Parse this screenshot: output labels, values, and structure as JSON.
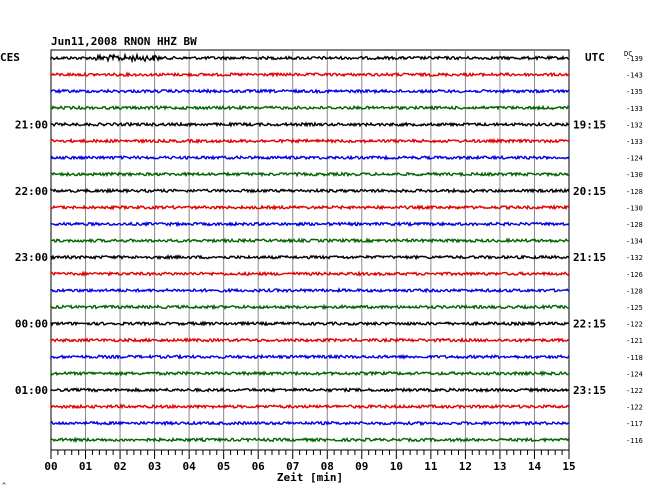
{
  "chart_data": {
    "type": "line",
    "title": "Jun11,2008   RNON HHZ BW",
    "xlabel": "Zeit [min]",
    "x_ticks": [
      "00",
      "01",
      "02",
      "03",
      "04",
      "05",
      "06",
      "07",
      "08",
      "09",
      "10",
      "11",
      "12",
      "13",
      "14",
      "15"
    ],
    "xlim": [
      0,
      15
    ],
    "left_axis_label": "CES",
    "right_axis_label": "UTC",
    "dc_label": "DC",
    "left_time_labels": [
      {
        "trace": 4,
        "text": "21:00"
      },
      {
        "trace": 8,
        "text": "22:00"
      },
      {
        "trace": 12,
        "text": "23:00"
      },
      {
        "trace": 16,
        "text": "00:00"
      },
      {
        "trace": 20,
        "text": "01:00"
      }
    ],
    "right_time_labels": [
      {
        "trace": 4,
        "text": "19:15"
      },
      {
        "trace": 8,
        "text": "20:15"
      },
      {
        "trace": 12,
        "text": "21:15"
      },
      {
        "trace": 16,
        "text": "22:15"
      },
      {
        "trace": 20,
        "text": "23:15"
      }
    ],
    "dc_offsets": [
      -139,
      -143,
      -135,
      -133,
      -132,
      -133,
      -124,
      -130,
      -128,
      -130,
      -128,
      -134,
      -132,
      -126,
      -128,
      -125,
      -122,
      -121,
      -118,
      -124,
      -122,
      -122,
      -117,
      -116
    ],
    "trace_colors": [
      "#000000",
      "#e00000",
      "#0000e0",
      "#006400"
    ],
    "grid": true,
    "footnote": "^"
  }
}
